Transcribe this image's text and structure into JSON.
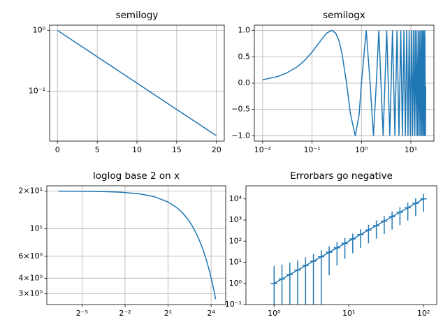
{
  "chart_data": [
    {
      "type": "line",
      "title": "semilogy",
      "xscale": "linear",
      "yscale": "log",
      "grid": true,
      "color": "#1f77b4",
      "x": [
        0.01,
        5,
        10,
        15,
        19.99
      ],
      "values": [
        0.998,
        0.3679,
        0.1353,
        0.0498,
        0.0184
      ],
      "xlim": [
        -0.99,
        20.99
      ],
      "xticks": [
        0,
        5,
        10,
        15,
        20
      ],
      "ylim": [
        0.015,
        1.22
      ],
      "yticks": [
        {
          "value": 1,
          "label": "10⁰"
        },
        {
          "value": 0.1,
          "label": "10⁻¹"
        }
      ]
    },
    {
      "type": "line",
      "title": "semilogx",
      "xscale": "log",
      "yscale": "linear",
      "grid": true,
      "color": "#1f77b4",
      "x": [
        0.01,
        0.02,
        0.03,
        0.05,
        0.07,
        0.1,
        0.13,
        0.16,
        0.2,
        0.25,
        0.3,
        0.35,
        0.4,
        0.5,
        0.6,
        0.75,
        0.9,
        1.0,
        1.25,
        1.5,
        1.75,
        2.0,
        2.25,
        2.75,
        3.25,
        3.75,
        4.25,
        4.75,
        5.25,
        5.75,
        6.25,
        6.75,
        7.25,
        7.75,
        8.25,
        8.75,
        9.25,
        9.75,
        10.25,
        10.75,
        11.25,
        11.75,
        12.25,
        12.75,
        13.25,
        13.75,
        14.25,
        14.75,
        15.25,
        15.75,
        16.25,
        16.75,
        17.25,
        17.75,
        18.25,
        18.75,
        19.25,
        19.75,
        19.99
      ],
      "values": [
        0.0628,
        0.1253,
        0.1874,
        0.309,
        0.4258,
        0.5878,
        0.729,
        0.8443,
        0.9511,
        1,
        0.9511,
        0.809,
        0.5878,
        0,
        -0.5878,
        -1,
        -0.5878,
        0,
        1,
        0,
        -1,
        0,
        1,
        -1,
        1,
        -1,
        1,
        -1,
        1,
        -1,
        1,
        -1,
        1,
        -1,
        1,
        -1,
        1,
        -1,
        1,
        -1,
        1,
        -1,
        1,
        -1,
        1,
        -1,
        1,
        -1,
        1,
        -1,
        1,
        -1,
        1,
        -1,
        1,
        -1,
        1,
        -1,
        -0.0628
      ],
      "xlim": [
        0.0068,
        29.3
      ],
      "xticks": [
        {
          "value": 0.01,
          "label": "10⁻²"
        },
        {
          "value": 0.1,
          "label": "10⁻¹"
        },
        {
          "value": 1,
          "label": "10⁰"
        },
        {
          "value": 10,
          "label": "10¹"
        }
      ],
      "ylim": [
        -1.1,
        1.1
      ],
      "yticks": [
        {
          "value": -1,
          "label": "−1.0"
        },
        {
          "value": -0.5,
          "label": "−0.5"
        },
        {
          "value": 0,
          "label": "0.0"
        },
        {
          "value": 0.5,
          "label": "0.5"
        },
        {
          "value": 1,
          "label": "1.0"
        }
      ]
    },
    {
      "type": "line",
      "title": "loglog base 2 on x",
      "xscale": "log",
      "yscale": "log",
      "grid": true,
      "color": "#1f77b4",
      "x": [
        0.01,
        0.02,
        0.05,
        0.1,
        0.2,
        0.5,
        1,
        2,
        3,
        4,
        5,
        6,
        7,
        8,
        9,
        10,
        11,
        12,
        13,
        14,
        15,
        16,
        17,
        18,
        19.99
      ],
      "values": [
        19.98,
        19.96,
        19.9,
        19.8,
        19.6,
        19.02,
        18.1,
        16.37,
        14.82,
        13.41,
        12.13,
        10.98,
        9.93,
        8.99,
        8.13,
        7.36,
        6.66,
        6.02,
        5.45,
        4.93,
        4.46,
        4.04,
        3.65,
        3.31,
        2.71
      ],
      "xlim": [
        0.0057,
        32.4
      ],
      "xticks": [
        {
          "value": 0.03125,
          "label": "2⁻⁵"
        },
        {
          "value": 0.25,
          "label": "2⁻²"
        },
        {
          "value": 2,
          "label": "2¹"
        },
        {
          "value": 16,
          "label": "2⁴"
        }
      ],
      "ylim": [
        2.46,
        22.06
      ],
      "yticks": [
        {
          "value": 3,
          "label": "3×10⁰"
        },
        {
          "value": 4,
          "label": "4×10⁰"
        },
        {
          "value": 6,
          "label": "6×10⁰"
        },
        {
          "value": 10,
          "label": "10¹"
        },
        {
          "value": 20,
          "label": "2×10¹"
        }
      ]
    },
    {
      "type": "errorbar",
      "title": "Errorbars go negative",
      "xscale": "log",
      "yscale": "log",
      "grid": false,
      "color": "#1f77b4",
      "x": [
        1,
        1.2743,
        1.6238,
        2.0691,
        2.6367,
        3.3598,
        4.2813,
        5.4556,
        6.9519,
        8.8587,
        11.288,
        14.384,
        18.33,
        23.357,
        29.764,
        37.927,
        48.329,
        61.585,
        78.476,
        100
      ],
      "values": [
        1,
        1.6238,
        2.6367,
        4.2813,
        6.9519,
        11.288,
        18.33,
        29.764,
        48.329,
        78.476,
        127.43,
        206.91,
        335.98,
        545.56,
        885.87,
        1438.4,
        2335.7,
        3792.7,
        6158.5,
        10000
      ],
      "xerr": [
        0.1,
        0.1274,
        0.1624,
        0.2069,
        0.2637,
        0.336,
        0.4281,
        0.5456,
        0.6952,
        0.8859,
        1.1288,
        1.4384,
        1.833,
        2.3357,
        2.9764,
        3.7927,
        4.8329,
        6.1585,
        7.8476,
        10
      ],
      "yerr": [
        5.75,
        6.218,
        6.978,
        8.211,
        10.214,
        13.466,
        18.748,
        27.323,
        41.247,
        63.857,
        100.53,
        160.18,
        256.99,
        414.17,
        669.4,
        1083.8,
        1756.8,
        2849.5,
        4623.9,
        7505
      ],
      "xlim": [
        0.42,
        150
      ],
      "xticks": [
        {
          "value": 1,
          "label": "10⁰"
        },
        {
          "value": 10,
          "label": "10¹"
        },
        {
          "value": 100,
          "label": "10²"
        }
      ],
      "ylim": [
        0.1,
        41700
      ],
      "yticks": [
        {
          "value": 0.1,
          "label": "10⁻¹"
        },
        {
          "value": 1,
          "label": "10⁰"
        },
        {
          "value": 10,
          "label": "10¹"
        },
        {
          "value": 100,
          "label": "10²"
        },
        {
          "value": 1000,
          "label": "10³"
        },
        {
          "value": 10000,
          "label": "10⁴"
        }
      ]
    }
  ]
}
